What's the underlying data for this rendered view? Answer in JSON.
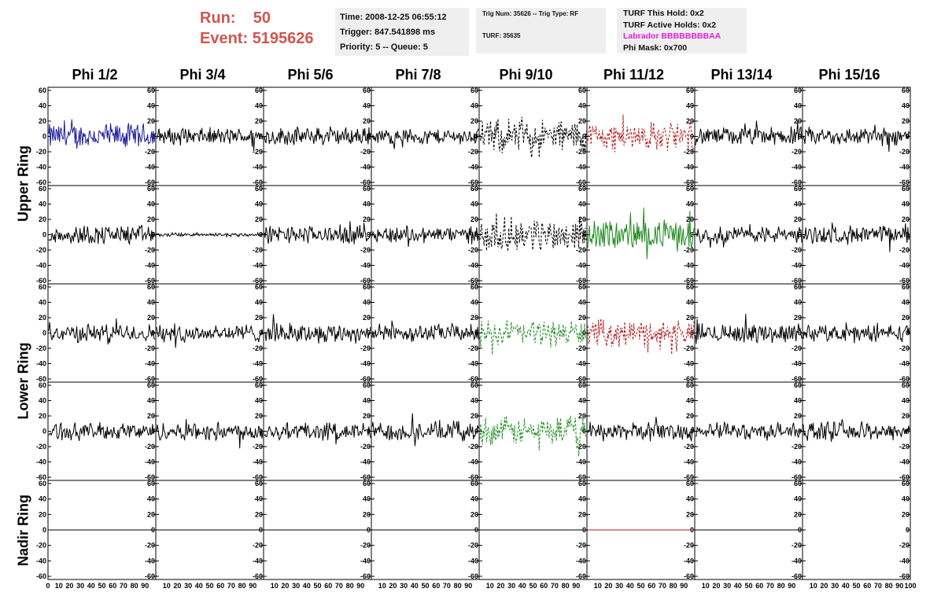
{
  "header": {
    "run_label": "Run:",
    "run_value": "50",
    "event_label": "Event:",
    "event_value": "5195626",
    "time": "Time: 2008-12-25 06:55:12",
    "trigger": "Trigger: 847.541898 ms",
    "priority": "Priority: 5 -- Queue: 5",
    "trig_num": "Trig Num: 35626 -- Trig Type: RF",
    "turf": "TURF: 35635",
    "turf_this_hold": "TURF This Hold: 0x2",
    "turf_active_holds": "TURF Active Holds: 0x2",
    "labrador": "Labrador BBBBBBBBAA",
    "phi_mask": "Phi Mask: 0x700"
  },
  "columns": [
    "Phi 1/2",
    "Phi 3/4",
    "Phi 5/6",
    "Phi 7/8",
    "Phi 9/10",
    "Phi 11/12",
    "Phi 13/14",
    "Phi 15/16"
  ],
  "rows": [
    "Upper Ring",
    "Lower Ring",
    "Nadir Ring"
  ],
  "axes": {
    "y_ticks": [
      "60",
      "40",
      "20",
      "0",
      "-20",
      "-40",
      "-60"
    ],
    "x_ticks": [
      "0",
      "10",
      "20",
      "30",
      "40",
      "50",
      "60",
      "70",
      "80",
      "90",
      "100"
    ],
    "ylim": [
      -60,
      60
    ],
    "xlim": [
      0,
      100
    ]
  },
  "colors": {
    "text_red": "#d0554f",
    "labrador_magenta": "#e020e0",
    "trace_black": "#000000",
    "trace_blue": "#1a1a9a",
    "trace_red": "#b01818",
    "trace_green": "#1e8a1e",
    "info_bg": "#efefef"
  },
  "traces": [
    {
      "color": "blue",
      "amp": 20,
      "style": "solid"
    },
    {
      "color": "black",
      "amp": 13,
      "style": "solid"
    },
    {
      "color": "black",
      "amp": 14,
      "style": "solid"
    },
    {
      "color": "black",
      "amp": 12,
      "style": "solid"
    },
    {
      "color": "black",
      "amp": 26,
      "style": "dashed"
    },
    {
      "color": "red",
      "amp": 22,
      "style": "dashed"
    },
    {
      "color": "black",
      "amp": 14,
      "style": "solid"
    },
    {
      "color": "black",
      "amp": 14,
      "style": "solid"
    },
    {
      "color": "black",
      "amp": 15,
      "style": "solid"
    },
    {
      "color": "black",
      "amp": 3,
      "style": "solid"
    },
    {
      "color": "black",
      "amp": 14,
      "style": "solid"
    },
    {
      "color": "black",
      "amp": 13,
      "style": "solid"
    },
    {
      "color": "black",
      "amp": 26,
      "style": "dashed"
    },
    {
      "color": "green",
      "amp": 23,
      "style": "solid"
    },
    {
      "color": "black",
      "amp": 13,
      "style": "solid"
    },
    {
      "color": "black",
      "amp": 14,
      "style": "solid"
    },
    {
      "color": "black",
      "amp": 14,
      "style": "solid"
    },
    {
      "color": "black",
      "amp": 14,
      "style": "solid"
    },
    {
      "color": "black",
      "amp": 15,
      "style": "solid"
    },
    {
      "color": "black",
      "amp": 13,
      "style": "solid"
    },
    {
      "color": "green",
      "amp": 20,
      "style": "dashed"
    },
    {
      "color": "red",
      "amp": 20,
      "style": "dashed"
    },
    {
      "color": "black",
      "amp": 15,
      "style": "solid"
    },
    {
      "color": "black",
      "amp": 13,
      "style": "solid"
    },
    {
      "color": "black",
      "amp": 13,
      "style": "solid"
    },
    {
      "color": "black",
      "amp": 14,
      "style": "solid"
    },
    {
      "color": "black",
      "amp": 14,
      "style": "solid"
    },
    {
      "color": "black",
      "amp": 15,
      "style": "solid"
    },
    {
      "color": "green",
      "amp": 22,
      "style": "dashed"
    },
    {
      "color": "black",
      "amp": 14,
      "style": "solid"
    },
    {
      "color": "black",
      "amp": 13,
      "style": "solid"
    },
    {
      "color": "black",
      "amp": 14,
      "style": "solid"
    },
    {
      "color": "black",
      "amp": 0,
      "style": "solid"
    },
    {
      "color": "black",
      "amp": 0,
      "style": "solid"
    },
    {
      "color": "black",
      "amp": 0,
      "style": "solid"
    },
    {
      "color": "black",
      "amp": 0,
      "style": "solid"
    },
    {
      "color": "black",
      "amp": 0,
      "style": "solid"
    },
    {
      "color": "red",
      "amp": 0,
      "style": "solid"
    },
    {
      "color": "black",
      "amp": 0,
      "style": "solid"
    },
    {
      "color": "none",
      "amp": 0,
      "style": "solid"
    }
  ]
}
